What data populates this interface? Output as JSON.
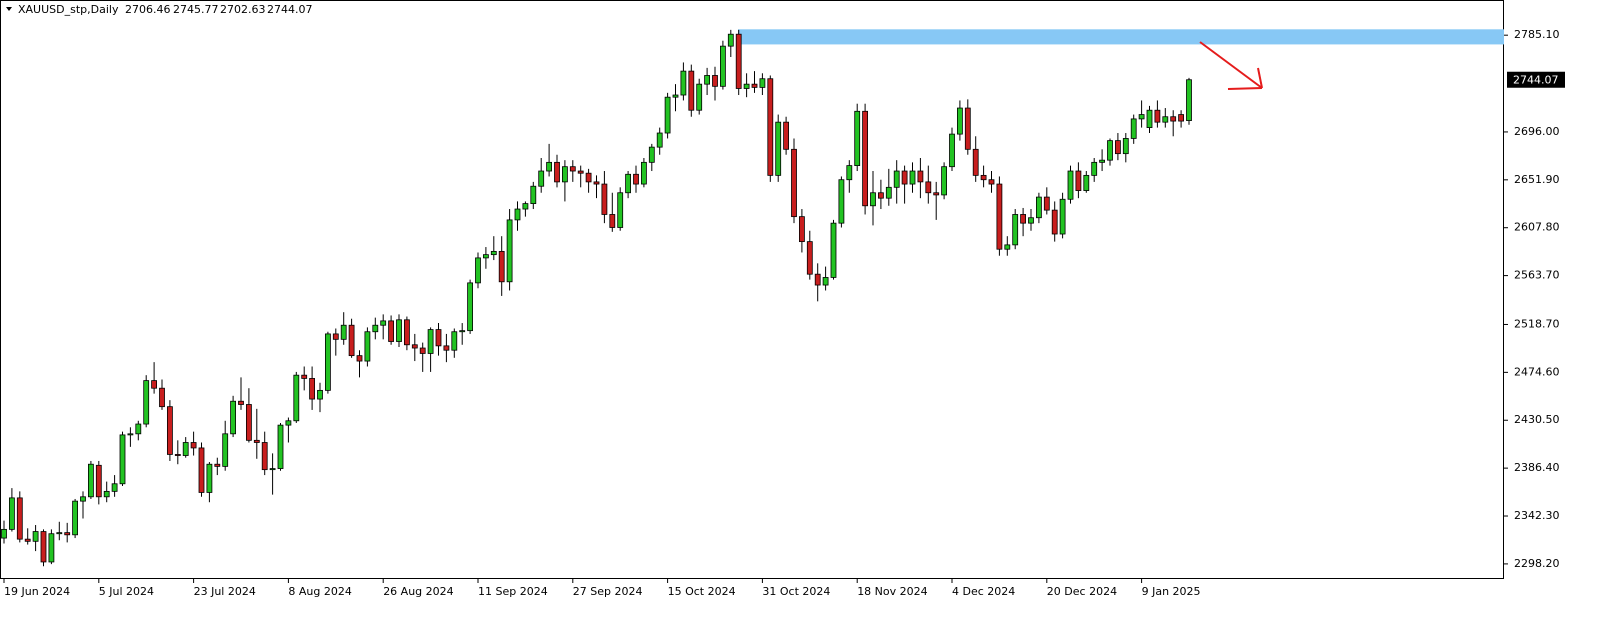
{
  "chart_data": {
    "type": "candlestick",
    "title": "XAUUSD_stp,Daily",
    "categories": [
      "19 Jun 2024",
      null,
      null,
      null,
      null,
      null,
      null,
      null,
      null,
      null,
      null,
      null,
      "5 Jul 2024",
      null,
      null,
      null,
      null,
      null,
      null,
      null,
      null,
      null,
      null,
      null,
      "23 Jul 2024",
      null,
      null,
      null,
      null,
      null,
      null,
      null,
      null,
      null,
      null,
      null,
      "8 Aug 2024",
      null,
      null,
      null,
      null,
      null,
      null,
      null,
      null,
      null,
      null,
      null,
      "26 Aug 2024",
      null,
      null,
      null,
      null,
      null,
      null,
      null,
      null,
      null,
      null,
      null,
      "11 Sep 2024",
      null,
      null,
      null,
      null,
      null,
      null,
      null,
      null,
      null,
      null,
      null,
      "27 Sep 2024",
      null,
      null,
      null,
      null,
      null,
      null,
      null,
      null,
      null,
      null,
      null,
      "15 Oct 2024",
      null,
      null,
      null,
      null,
      null,
      null,
      null,
      null,
      null,
      null,
      null,
      "31 Oct 2024",
      null,
      null,
      null,
      null,
      null,
      null,
      null,
      null,
      null,
      null,
      null,
      "18 Nov 2024",
      null,
      null,
      null,
      null,
      null,
      null,
      null,
      null,
      null,
      null,
      null,
      "4 Dec 2024",
      null,
      null,
      null,
      null,
      null,
      null,
      null,
      null,
      null,
      null,
      null,
      "20 Dec 2024",
      null,
      null,
      null,
      null,
      null,
      null,
      null,
      null,
      null,
      null,
      null,
      "9 Jan 2025",
      null,
      null,
      null,
      null,
      null,
      null
    ],
    "open": [
      2322,
      2330,
      2359,
      2321,
      2319,
      2328,
      2300,
      2326,
      2327,
      2325,
      2356,
      2360,
      2389,
      2360,
      2365,
      2372,
      2417,
      2418,
      2427,
      2467,
      2460,
      2443,
      2399,
      2398,
      2410,
      2405,
      2364,
      2390,
      2388,
      2418,
      2448,
      2445,
      2412,
      2410,
      2385,
      2386,
      2426,
      2430,
      2472,
      2469,
      2450,
      2458,
      2510,
      2505,
      2518,
      2490,
      2485,
      2512,
      2518,
      2522,
      2503,
      2523,
      2500,
      2497,
      2492,
      2514,
      2499,
      2495,
      2512,
      2513,
      2557,
      2580,
      2583,
      2586,
      2558,
      2615,
      2625,
      2630,
      2646,
      2660,
      2668,
      2650,
      2664,
      2660,
      2658,
      2650,
      2648,
      2620,
      2608,
      2640,
      2657,
      2648,
      2668,
      2682,
      2695,
      2728,
      2730,
      2752,
      2716,
      2740,
      2748,
      2738,
      2775,
      2786,
      2736,
      2740,
      2737,
      2745,
      2656,
      2705,
      2680,
      2618,
      2595,
      2565,
      2555,
      2562,
      2612,
      2652,
      2665,
      2715,
      2628,
      2640,
      2635,
      2645,
      2660,
      2648,
      2660,
      2650,
      2640,
      2638,
      2664,
      2694,
      2718,
      2680,
      2656,
      2652,
      2648,
      2588,
      2592,
      2620,
      2612,
      2617,
      2636,
      2624,
      2602,
      2634,
      2660,
      2642,
      2656,
      2668,
      2670,
      2688,
      2676,
      2690,
      2708,
      2700,
      2716,
      2705,
      2710,
      2712,
      2706.46
    ],
    "high": [
      2338,
      2368,
      2365,
      2331,
      2334,
      2330,
      2330,
      2337,
      2336,
      2358,
      2365,
      2393,
      2393,
      2374,
      2380,
      2420,
      2424,
      2430,
      2472,
      2484,
      2468,
      2449,
      2412,
      2415,
      2420,
      2410,
      2392,
      2396,
      2430,
      2453,
      2470,
      2460,
      2441,
      2420,
      2400,
      2428,
      2433,
      2475,
      2480,
      2480,
      2465,
      2512,
      2515,
      2530,
      2524,
      2495,
      2516,
      2525,
      2528,
      2527,
      2528,
      2526,
      2510,
      2502,
      2516,
      2520,
      2510,
      2515,
      2520,
      2560,
      2585,
      2590,
      2600,
      2600,
      2625,
      2632,
      2632,
      2650,
      2672,
      2685,
      2675,
      2670,
      2670,
      2665,
      2662,
      2656,
      2660,
      2640,
      2645,
      2660,
      2665,
      2672,
      2685,
      2700,
      2732,
      2740,
      2760,
      2758,
      2745,
      2755,
      2756,
      2780,
      2790,
      2790,
      2750,
      2752,
      2750,
      2748,
      2712,
      2710,
      2690,
      2625,
      2605,
      2575,
      2572,
      2615,
      2655,
      2670,
      2722,
      2722,
      2660,
      2652,
      2662,
      2670,
      2665,
      2668,
      2672,
      2665,
      2650,
      2668,
      2700,
      2725,
      2726,
      2692,
      2665,
      2660,
      2655,
      2600,
      2625,
      2626,
      2625,
      2640,
      2645,
      2632,
      2640,
      2665,
      2668,
      2660,
      2672,
      2680,
      2690,
      2695,
      2695,
      2712,
      2725,
      2720,
      2725,
      2718,
      2716,
      2716,
      2745.77
    ],
    "low": [
      2317,
      2328,
      2318,
      2316,
      2310,
      2296,
      2298,
      2320,
      2318,
      2322,
      2340,
      2358,
      2353,
      2355,
      2360,
      2370,
      2406,
      2412,
      2424,
      2455,
      2440,
      2393,
      2390,
      2396,
      2398,
      2360,
      2355,
      2380,
      2384,
      2415,
      2440,
      2410,
      2395,
      2380,
      2362,
      2384,
      2410,
      2428,
      2458,
      2440,
      2438,
      2455,
      2490,
      2500,
      2488,
      2470,
      2480,
      2505,
      2505,
      2500,
      2498,
      2495,
      2485,
      2475,
      2475,
      2490,
      2484,
      2488,
      2500,
      2510,
      2552,
      2570,
      2578,
      2545,
      2550,
      2605,
      2618,
      2625,
      2640,
      2655,
      2645,
      2632,
      2650,
      2645,
      2640,
      2635,
      2612,
      2604,
      2605,
      2635,
      2640,
      2645,
      2660,
      2675,
      2690,
      2715,
      2725,
      2710,
      2712,
      2730,
      2725,
      2735,
      2765,
      2730,
      2728,
      2732,
      2730,
      2650,
      2650,
      2675,
      2612,
      2585,
      2560,
      2540,
      2550,
      2560,
      2608,
      2640,
      2660,
      2620,
      2610,
      2625,
      2628,
      2630,
      2630,
      2640,
      2635,
      2630,
      2615,
      2634,
      2660,
      2688,
      2675,
      2650,
      2645,
      2640,
      2582,
      2582,
      2588,
      2600,
      2605,
      2612,
      2620,
      2595,
      2598,
      2630,
      2635,
      2640,
      2650,
      2660,
      2665,
      2670,
      2668,
      2685,
      2700,
      2695,
      2700,
      2700,
      2692,
      2700,
      2702.63
    ],
    "close": [
      2330,
      2359,
      2321,
      2319,
      2328,
      2300,
      2326,
      2327,
      2325,
      2356,
      2360,
      2390,
      2360,
      2365,
      2372,
      2417,
      2418,
      2427,
      2467,
      2460,
      2443,
      2399,
      2398,
      2410,
      2405,
      2364,
      2390,
      2388,
      2418,
      2448,
      2445,
      2412,
      2410,
      2385,
      2386,
      2426,
      2430,
      2472,
      2469,
      2450,
      2458,
      2510,
      2505,
      2518,
      2490,
      2485,
      2512,
      2518,
      2522,
      2503,
      2523,
      2500,
      2497,
      2492,
      2514,
      2499,
      2495,
      2512,
      2513,
      2557,
      2580,
      2583,
      2586,
      2558,
      2615,
      2625,
      2630,
      2646,
      2660,
      2668,
      2650,
      2664,
      2660,
      2658,
      2650,
      2648,
      2620,
      2608,
      2640,
      2657,
      2648,
      2668,
      2682,
      2695,
      2728,
      2730,
      2752,
      2716,
      2740,
      2748,
      2738,
      2775,
      2786,
      2736,
      2740,
      2737,
      2745,
      2656,
      2705,
      2680,
      2618,
      2595,
      2565,
      2555,
      2562,
      2612,
      2652,
      2665,
      2715,
      2628,
      2640,
      2635,
      2645,
      2660,
      2648,
      2660,
      2650,
      2640,
      2638,
      2664,
      2694,
      2718,
      2680,
      2656,
      2652,
      2648,
      2588,
      2592,
      2620,
      2612,
      2617,
      2636,
      2624,
      2602,
      2634,
      2660,
      2642,
      2656,
      2668,
      2670,
      2688,
      2676,
      2690,
      2708,
      2712,
      2716,
      2705,
      2710,
      2706,
      2706,
      2744.07
    ],
    "up_color": "#22c322",
    "down_color": "#c81e1e",
    "zone": {
      "range": [
        2776.6,
        2790.5
      ],
      "color": "#87c8f5"
    },
    "ylim": [
      2284.3,
      2817.5
    ],
    "yticks": [
      {
        "value": 2298.2,
        "label": "2298.20"
      },
      {
        "value": 2342.3,
        "label": "2342.30"
      },
      {
        "value": 2386.4,
        "label": "2386.40"
      },
      {
        "value": 2430.5,
        "label": "2430.50"
      },
      {
        "value": 2474.6,
        "label": "2474.60"
      },
      {
        "value": 2518.7,
        "label": "2518.70"
      },
      {
        "value": 2563.7,
        "label": "2563.70"
      },
      {
        "value": 2607.8,
        "label": "2607.80"
      },
      {
        "value": 2651.9,
        "label": "2651.90"
      },
      {
        "value": 2696.0,
        "label": "2696.00"
      },
      {
        "value": 2785.1,
        "label": "2785.10"
      }
    ]
  }
}
